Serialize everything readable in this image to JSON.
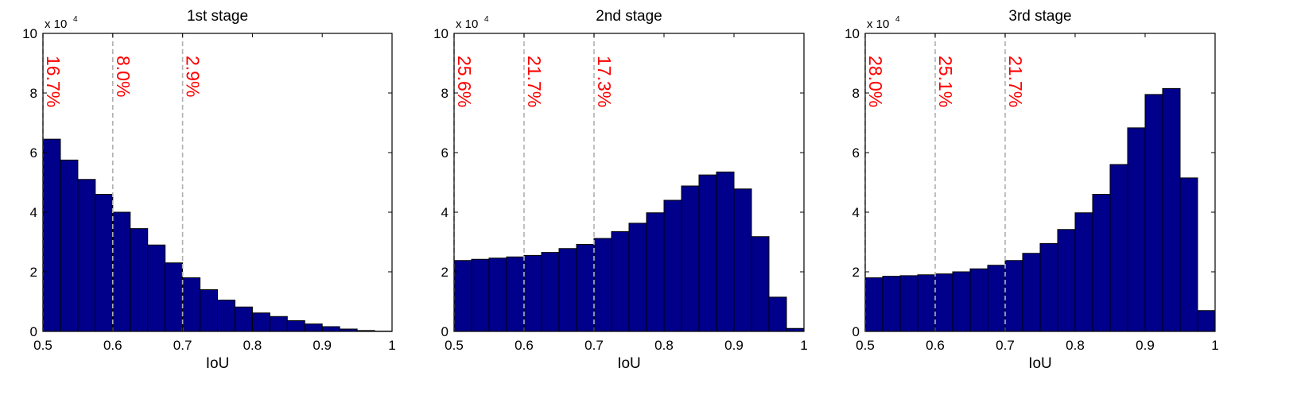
{
  "colors": {
    "bar_fill": "#00008b",
    "bar_edge": "#000000",
    "threshold_line": "#b0b0b0",
    "percent_text": "#ff0000",
    "axes": "#000000"
  },
  "chart_data": [
    {
      "type": "bar",
      "title": "1st stage",
      "xlabel": "IoU",
      "ylabel": "",
      "y_multiplier": "x 10",
      "y_multiplier_exponent": "4",
      "xlim": [
        0.5,
        1
      ],
      "ylim": [
        0,
        10
      ],
      "x_ticks": [
        "0.5",
        "0.6",
        "0.7",
        "0.8",
        "0.9",
        "1"
      ],
      "y_ticks": [
        "0",
        "2",
        "4",
        "6",
        "8",
        "10"
      ],
      "bin_start": 0.5,
      "bin_width": 0.025,
      "values": [
        6.45,
        5.75,
        5.1,
        4.6,
        4.0,
        3.45,
        2.9,
        2.3,
        1.8,
        1.4,
        1.05,
        0.82,
        0.62,
        0.5,
        0.36,
        0.25,
        0.16,
        0.08,
        0.03,
        0.01
      ],
      "thresholds": [
        {
          "x": 0.5,
          "label": "16.7%"
        },
        {
          "x": 0.6,
          "label": "8.0%"
        },
        {
          "x": 0.7,
          "label": "2.9%"
        }
      ]
    },
    {
      "type": "bar",
      "title": "2nd stage",
      "xlabel": "IoU",
      "ylabel": "",
      "y_multiplier": "x 10",
      "y_multiplier_exponent": "4",
      "xlim": [
        0.5,
        1
      ],
      "ylim": [
        0,
        10
      ],
      "x_ticks": [
        "0.5",
        "0.6",
        "0.7",
        "0.8",
        "0.9",
        "1"
      ],
      "y_ticks": [
        "0",
        "2",
        "4",
        "6",
        "8",
        "10"
      ],
      "bin_start": 0.5,
      "bin_width": 0.025,
      "values": [
        2.38,
        2.42,
        2.46,
        2.5,
        2.55,
        2.65,
        2.78,
        2.92,
        3.12,
        3.35,
        3.63,
        3.98,
        4.4,
        4.88,
        5.25,
        5.35,
        4.78,
        3.18,
        1.15,
        0.1
      ],
      "thresholds": [
        {
          "x": 0.5,
          "label": "25.6%"
        },
        {
          "x": 0.6,
          "label": "21.7%"
        },
        {
          "x": 0.7,
          "label": "17.3%"
        }
      ]
    },
    {
      "type": "bar",
      "title": "3rd stage",
      "xlabel": "IoU",
      "ylabel": "",
      "y_multiplier": "x 10",
      "y_multiplier_exponent": "4",
      "xlim": [
        0.5,
        1
      ],
      "ylim": [
        0,
        10
      ],
      "x_ticks": [
        "0.5",
        "0.6",
        "0.7",
        "0.8",
        "0.9",
        "1"
      ],
      "y_ticks": [
        "0",
        "2",
        "4",
        "6",
        "8",
        "10"
      ],
      "bin_start": 0.5,
      "bin_width": 0.025,
      "values": [
        1.8,
        1.85,
        1.87,
        1.9,
        1.93,
        2.0,
        2.1,
        2.22,
        2.38,
        2.62,
        2.95,
        3.42,
        3.98,
        4.6,
        5.6,
        6.83,
        7.95,
        8.15,
        5.15,
        0.7
      ],
      "thresholds": [
        {
          "x": 0.5,
          "label": "28.0%"
        },
        {
          "x": 0.6,
          "label": "25.1%"
        },
        {
          "x": 0.7,
          "label": "21.7%"
        }
      ]
    }
  ]
}
